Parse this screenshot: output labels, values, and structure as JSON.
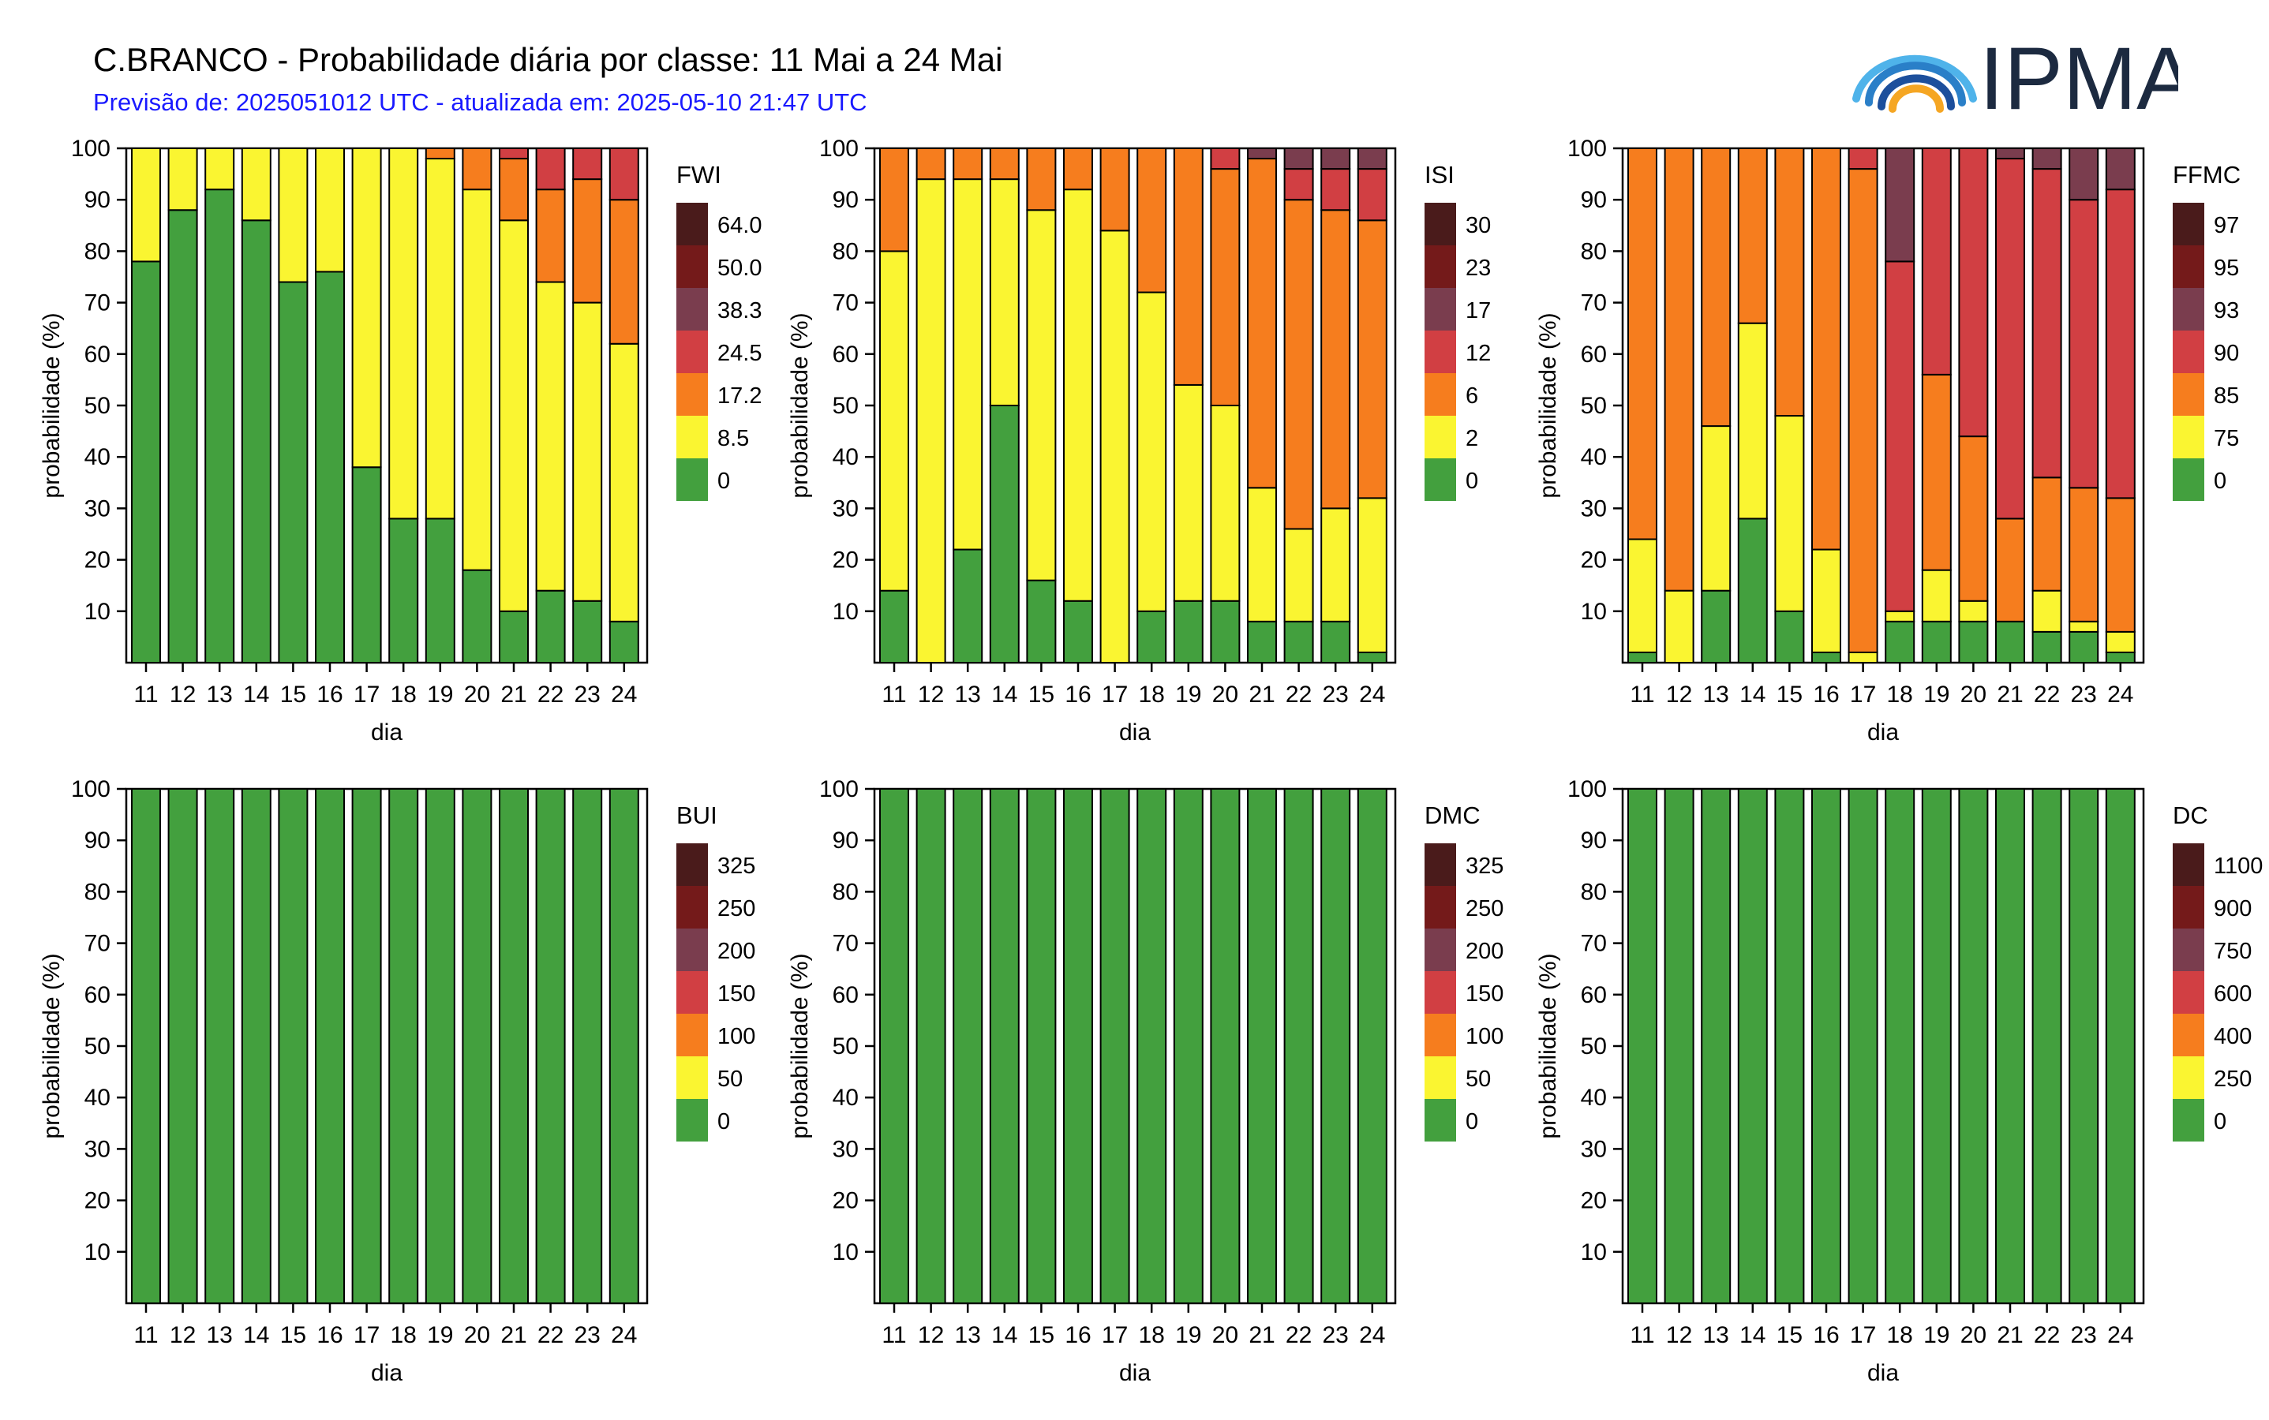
{
  "header": {
    "title": "C.BRANCO - Probabilidade diária por classe: 11 Mai a 24 Mai",
    "subtitle": "Previsão de: 2025051012 UTC - atualizada em: 2025-05-10 21:47 UTC",
    "logo_text": "IPMA"
  },
  "class_colors": [
    "#43a03e",
    "#faf531",
    "#f67d1e",
    "#d13f43",
    "#7a3d4e",
    "#741a1a",
    "#4a1b1b"
  ],
  "chart_data": [
    {
      "type": "bar",
      "stacked": true,
      "index": "FWI",
      "categories": [
        "11",
        "12",
        "13",
        "14",
        "15",
        "16",
        "17",
        "18",
        "19",
        "20",
        "21",
        "22",
        "23",
        "24"
      ],
      "legend_labels": [
        "0",
        "8.5",
        "17.2",
        "24.5",
        "38.3",
        "50.0",
        "64.0"
      ],
      "yticks": [
        10,
        20,
        30,
        40,
        50,
        60,
        70,
        80,
        90,
        100
      ],
      "ylabel": "probabilidade (%)",
      "xlabel": "dia",
      "ylim": [
        0,
        100
      ],
      "series": [
        {
          "values": [
            78,
            88,
            92,
            86,
            74,
            76,
            38,
            28,
            28,
            18,
            10,
            14,
            12,
            8
          ]
        },
        {
          "values": [
            22,
            12,
            8,
            14,
            26,
            24,
            62,
            72,
            70,
            74,
            76,
            60,
            58,
            54
          ]
        },
        {
          "values": [
            0,
            0,
            0,
            0,
            0,
            0,
            0,
            0,
            2,
            8,
            12,
            18,
            24,
            28
          ]
        },
        {
          "values": [
            0,
            0,
            0,
            0,
            0,
            0,
            0,
            0,
            0,
            0,
            2,
            8,
            6,
            10
          ]
        },
        {
          "values": [
            0,
            0,
            0,
            0,
            0,
            0,
            0,
            0,
            0,
            0,
            0,
            0,
            0,
            0
          ]
        },
        {
          "values": [
            0,
            0,
            0,
            0,
            0,
            0,
            0,
            0,
            0,
            0,
            0,
            0,
            0,
            0
          ]
        },
        {
          "values": [
            0,
            0,
            0,
            0,
            0,
            0,
            0,
            0,
            0,
            0,
            0,
            0,
            0,
            0
          ]
        }
      ]
    },
    {
      "type": "bar",
      "stacked": true,
      "index": "ISI",
      "categories": [
        "11",
        "12",
        "13",
        "14",
        "15",
        "16",
        "17",
        "18",
        "19",
        "20",
        "21",
        "22",
        "23",
        "24"
      ],
      "legend_labels": [
        "0",
        "2",
        "6",
        "12",
        "17",
        "23",
        "30"
      ],
      "yticks": [
        10,
        20,
        30,
        40,
        50,
        60,
        70,
        80,
        90,
        100
      ],
      "ylabel": "probabilidade (%)",
      "xlabel": "dia",
      "ylim": [
        0,
        100
      ],
      "series": [
        {
          "values": [
            14,
            0,
            22,
            50,
            16,
            12,
            0,
            10,
            12,
            12,
            8,
            8,
            8,
            2
          ]
        },
        {
          "values": [
            66,
            94,
            72,
            44,
            72,
            80,
            84,
            62,
            42,
            38,
            26,
            18,
            22,
            30
          ]
        },
        {
          "values": [
            20,
            6,
            6,
            6,
            12,
            8,
            16,
            28,
            46,
            46,
            64,
            64,
            58,
            54
          ]
        },
        {
          "values": [
            0,
            0,
            0,
            0,
            0,
            0,
            0,
            0,
            0,
            4,
            0,
            6,
            8,
            10
          ]
        },
        {
          "values": [
            0,
            0,
            0,
            0,
            0,
            0,
            0,
            0,
            0,
            0,
            2,
            4,
            4,
            4
          ]
        },
        {
          "values": [
            0,
            0,
            0,
            0,
            0,
            0,
            0,
            0,
            0,
            0,
            0,
            0,
            0,
            0
          ]
        },
        {
          "values": [
            0,
            0,
            0,
            0,
            0,
            0,
            0,
            0,
            0,
            0,
            0,
            0,
            0,
            0
          ]
        }
      ]
    },
    {
      "type": "bar",
      "stacked": true,
      "index": "FFMC",
      "categories": [
        "11",
        "12",
        "13",
        "14",
        "15",
        "16",
        "17",
        "18",
        "19",
        "20",
        "21",
        "22",
        "23",
        "24"
      ],
      "legend_labels": [
        "0",
        "75",
        "85",
        "90",
        "93",
        "95",
        "97"
      ],
      "yticks": [
        10,
        20,
        30,
        40,
        50,
        60,
        70,
        80,
        90,
        100
      ],
      "ylabel": "probabilidade (%)",
      "xlabel": "dia",
      "ylim": [
        0,
        100
      ],
      "series": [
        {
          "values": [
            2,
            0,
            14,
            28,
            10,
            2,
            0,
            8,
            8,
            8,
            8,
            6,
            6,
            2
          ]
        },
        {
          "values": [
            22,
            14,
            32,
            38,
            38,
            20,
            2,
            2,
            10,
            4,
            0,
            8,
            2,
            4
          ]
        },
        {
          "values": [
            76,
            86,
            54,
            34,
            52,
            78,
            94,
            0,
            38,
            32,
            20,
            22,
            26,
            26
          ]
        },
        {
          "values": [
            0,
            0,
            0,
            0,
            0,
            0,
            4,
            68,
            44,
            56,
            70,
            60,
            56,
            60
          ]
        },
        {
          "values": [
            0,
            0,
            0,
            0,
            0,
            0,
            0,
            22,
            0,
            0,
            2,
            4,
            10,
            8
          ]
        },
        {
          "values": [
            0,
            0,
            0,
            0,
            0,
            0,
            0,
            0,
            0,
            0,
            0,
            0,
            0,
            0
          ]
        },
        {
          "values": [
            0,
            0,
            0,
            0,
            0,
            0,
            0,
            0,
            0,
            0,
            0,
            0,
            0,
            0
          ]
        }
      ]
    },
    {
      "type": "bar",
      "stacked": true,
      "index": "BUI",
      "categories": [
        "11",
        "12",
        "13",
        "14",
        "15",
        "16",
        "17",
        "18",
        "19",
        "20",
        "21",
        "22",
        "23",
        "24"
      ],
      "legend_labels": [
        "0",
        "50",
        "100",
        "150",
        "200",
        "250",
        "325"
      ],
      "yticks": [
        10,
        20,
        30,
        40,
        50,
        60,
        70,
        80,
        90,
        100
      ],
      "ylabel": "probabilidade (%)",
      "xlabel": "dia",
      "ylim": [
        0,
        100
      ],
      "series": [
        {
          "values": [
            100,
            100,
            100,
            100,
            100,
            100,
            100,
            100,
            100,
            100,
            100,
            100,
            100,
            100
          ]
        }
      ]
    },
    {
      "type": "bar",
      "stacked": true,
      "index": "DMC",
      "categories": [
        "11",
        "12",
        "13",
        "14",
        "15",
        "16",
        "17",
        "18",
        "19",
        "20",
        "21",
        "22",
        "23",
        "24"
      ],
      "legend_labels": [
        "0",
        "50",
        "100",
        "150",
        "200",
        "250",
        "325"
      ],
      "yticks": [
        10,
        20,
        30,
        40,
        50,
        60,
        70,
        80,
        90,
        100
      ],
      "ylabel": "probabilidade (%)",
      "xlabel": "dia",
      "ylim": [
        0,
        100
      ],
      "series": [
        {
          "values": [
            100,
            100,
            100,
            100,
            100,
            100,
            100,
            100,
            100,
            100,
            100,
            100,
            100,
            100
          ]
        }
      ]
    },
    {
      "type": "bar",
      "stacked": true,
      "index": "DC",
      "categories": [
        "11",
        "12",
        "13",
        "14",
        "15",
        "16",
        "17",
        "18",
        "19",
        "20",
        "21",
        "22",
        "23",
        "24"
      ],
      "legend_labels": [
        "0",
        "250",
        "400",
        "600",
        "750",
        "900",
        "1100"
      ],
      "yticks": [
        10,
        20,
        30,
        40,
        50,
        60,
        70,
        80,
        90,
        100
      ],
      "ylabel": "probabilidade (%)",
      "xlabel": "dia",
      "ylim": [
        0,
        100
      ],
      "series": [
        {
          "values": [
            100,
            100,
            100,
            100,
            100,
            100,
            100,
            100,
            100,
            100,
            100,
            100,
            100,
            100
          ]
        }
      ]
    }
  ]
}
